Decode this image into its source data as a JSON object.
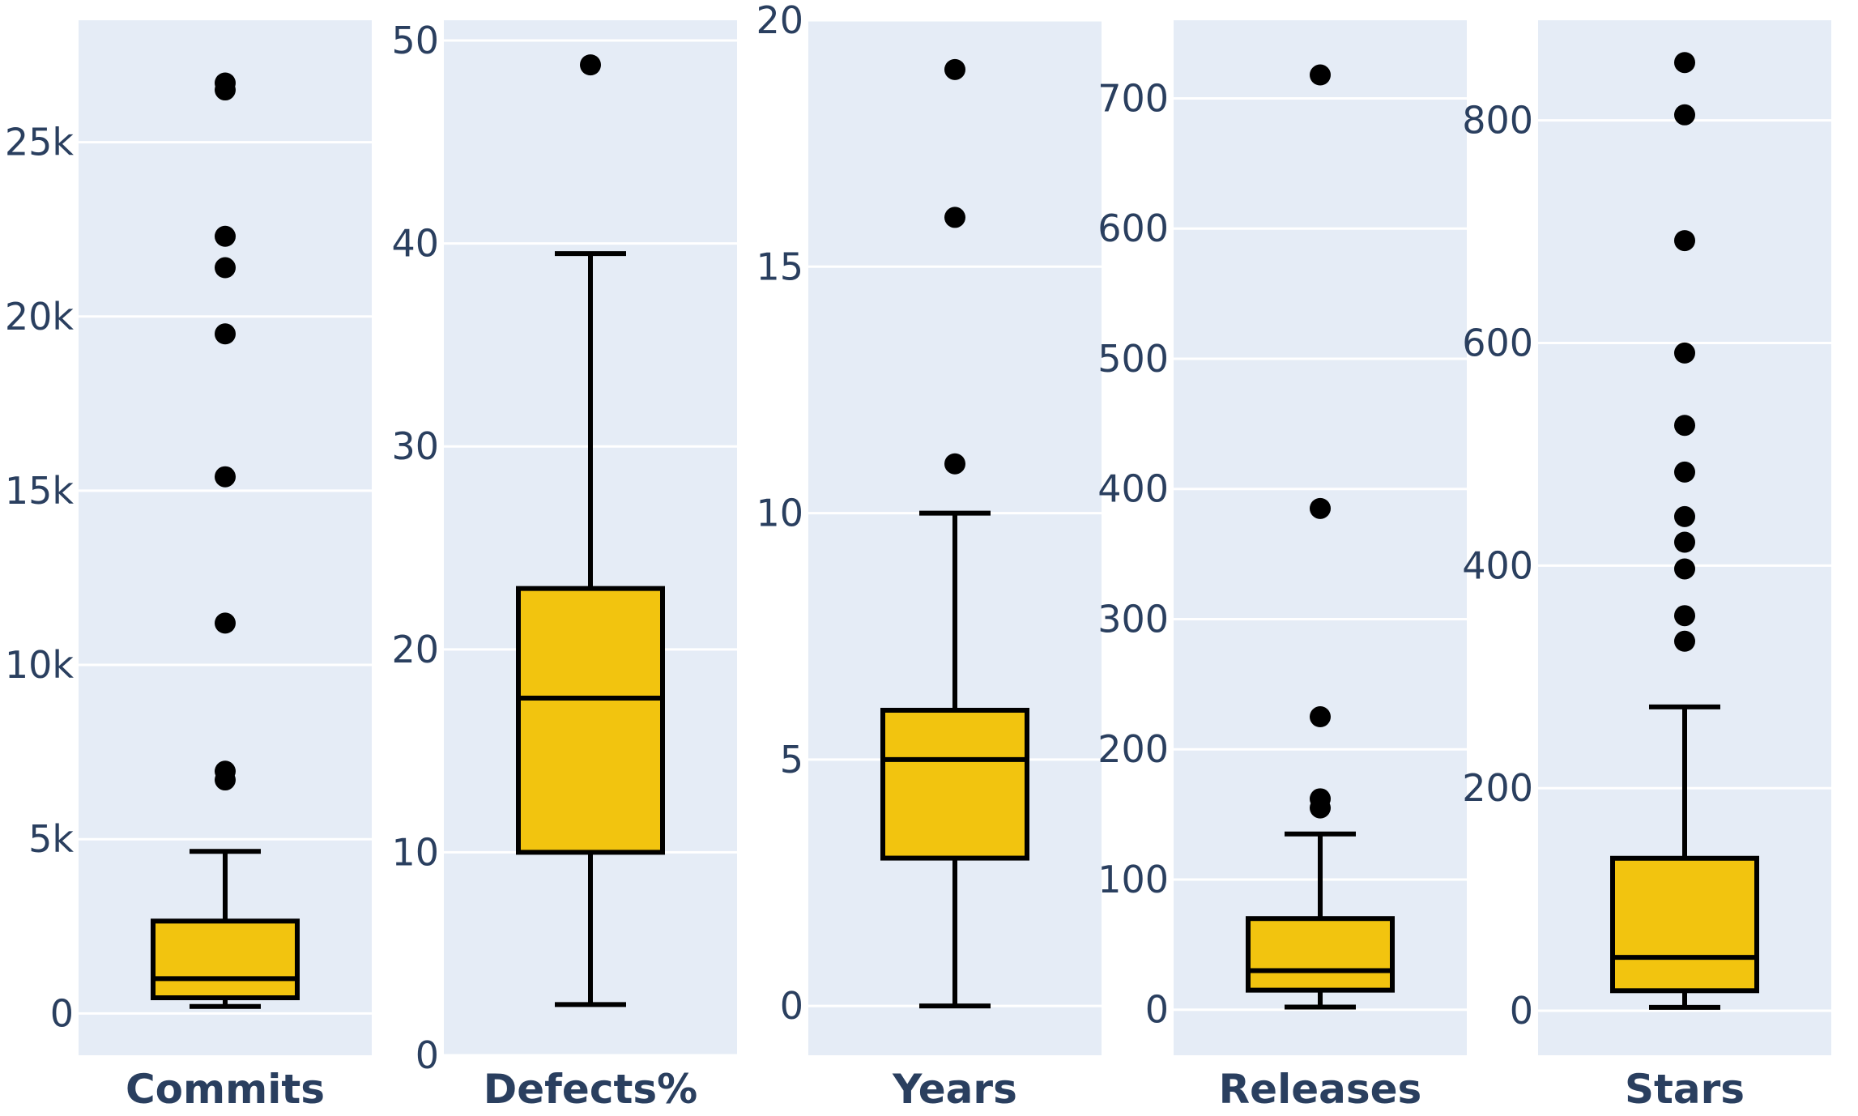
{
  "chart_data": [
    {
      "type": "box",
      "category": "Commits",
      "ylim": [
        -1200,
        28500
      ],
      "ticks": [
        {
          "value": 0,
          "label": "0"
        },
        {
          "value": 5000,
          "label": "5k"
        },
        {
          "value": 10000,
          "label": "10k"
        },
        {
          "value": 15000,
          "label": "15k"
        },
        {
          "value": 20000,
          "label": "20k"
        },
        {
          "value": 25000,
          "label": "25k"
        }
      ],
      "box": {
        "lower_whisker": 200,
        "q1": 450,
        "median": 1000,
        "q3": 2650,
        "upper_whisker": 4650
      },
      "outliers": [
        6700,
        6950,
        11200,
        15400,
        19500,
        21400,
        22300,
        26500,
        26700
      ],
      "grid": true
    },
    {
      "type": "box",
      "category": "Defects%",
      "ylim": [
        0,
        51
      ],
      "ticks": [
        {
          "value": 0,
          "label": "0"
        },
        {
          "value": 10,
          "label": "10"
        },
        {
          "value": 20,
          "label": "20"
        },
        {
          "value": 30,
          "label": "30"
        },
        {
          "value": 40,
          "label": "40"
        },
        {
          "value": 50,
          "label": "50"
        }
      ],
      "box": {
        "lower_whisker": 2.5,
        "q1": 10,
        "median": 17.6,
        "q3": 23,
        "upper_whisker": 39.5
      },
      "outliers": [
        48.8
      ],
      "grid": true
    },
    {
      "type": "box",
      "category": "Years",
      "ylim": [
        -1,
        20
      ],
      "ticks": [
        {
          "value": 0,
          "label": "0"
        },
        {
          "value": 5,
          "label": "5"
        },
        {
          "value": 10,
          "label": "10"
        },
        {
          "value": 15,
          "label": "15"
        },
        {
          "value": 20,
          "label": "20"
        }
      ],
      "box": {
        "lower_whisker": 0,
        "q1": 3,
        "median": 5,
        "q3": 6,
        "upper_whisker": 10
      },
      "outliers": [
        11,
        16,
        19
      ],
      "grid": true
    },
    {
      "type": "box",
      "category": "Releases",
      "ylim": [
        -35,
        760
      ],
      "ticks": [
        {
          "value": 0,
          "label": "0"
        },
        {
          "value": 100,
          "label": "100"
        },
        {
          "value": 200,
          "label": "200"
        },
        {
          "value": 300,
          "label": "300"
        },
        {
          "value": 400,
          "label": "400"
        },
        {
          "value": 500,
          "label": "500"
        },
        {
          "value": 600,
          "label": "600"
        },
        {
          "value": 700,
          "label": "700"
        }
      ],
      "box": {
        "lower_whisker": 2,
        "q1": 15,
        "median": 30,
        "q3": 70,
        "upper_whisker": 135
      },
      "outliers": [
        155,
        162,
        225,
        385,
        718
      ],
      "grid": true
    },
    {
      "type": "box",
      "category": "Stars",
      "ylim": [
        -40,
        890
      ],
      "ticks": [
        {
          "value": 0,
          "label": "0"
        },
        {
          "value": 200,
          "label": "200"
        },
        {
          "value": 400,
          "label": "400"
        },
        {
          "value": 600,
          "label": "600"
        },
        {
          "value": 800,
          "label": "800"
        }
      ],
      "box": {
        "lower_whisker": 3,
        "q1": 18,
        "median": 48,
        "q3": 137,
        "upper_whisker": 273
      },
      "outliers": [
        332,
        355,
        397,
        421,
        444,
        484,
        526,
        591,
        692,
        805,
        852
      ],
      "grid": true
    }
  ],
  "colors": {
    "plot_background": "#e5ecf6",
    "gridline": "#ffffff",
    "box_fill": "#f2c40f",
    "box_line": "#000000",
    "outlier": "#000000",
    "tick_text": "#2a3f5f",
    "category_text": "#2a3f5f"
  }
}
